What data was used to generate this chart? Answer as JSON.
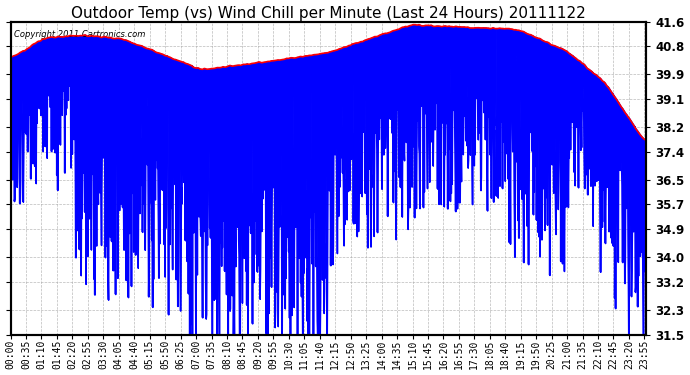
{
  "title": "Outdoor Temp (vs) Wind Chill per Minute (Last 24 Hours) 20111122",
  "copyright_text": "Copyright 2011 Cartronics.com",
  "ylabel_right_ticks": [
    41.6,
    40.8,
    39.9,
    39.1,
    38.2,
    37.4,
    36.5,
    35.7,
    34.9,
    34.0,
    33.2,
    32.3,
    31.5
  ],
  "ylim": [
    31.5,
    41.6
  ],
  "x_tick_labels": [
    "00:00",
    "00:35",
    "01:10",
    "01:45",
    "02:20",
    "02:55",
    "03:30",
    "04:05",
    "04:40",
    "05:15",
    "05:50",
    "06:25",
    "07:00",
    "07:35",
    "08:10",
    "08:45",
    "09:20",
    "09:55",
    "10:30",
    "11:05",
    "11:40",
    "12:15",
    "12:50",
    "13:25",
    "14:00",
    "14:35",
    "15:10",
    "15:45",
    "16:20",
    "16:55",
    "17:30",
    "18:05",
    "18:40",
    "19:15",
    "19:50",
    "20:25",
    "21:00",
    "21:35",
    "22:10",
    "22:45",
    "23:20",
    "23:55"
  ],
  "outdoor_color": "#FF0000",
  "windchill_color": "#0000FF",
  "bg_color": "#FFFFFF",
  "plot_bg_color": "#FFFFFF",
  "grid_color": "#AAAAAA",
  "title_fontsize": 11,
  "tick_fontsize": 7,
  "outdoor_linewidth": 1.2,
  "windchill_linewidth": 0.8
}
